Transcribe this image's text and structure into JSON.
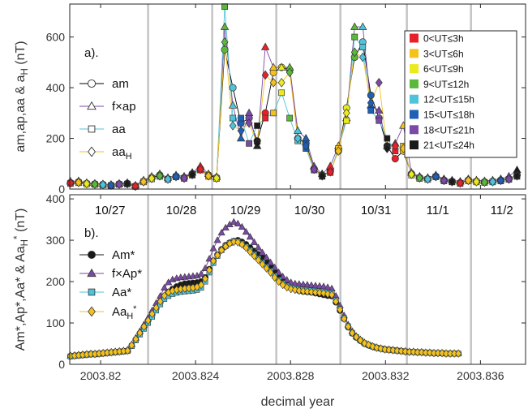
{
  "chart_data": [
    {
      "type": "scatter",
      "panel_label": "a).",
      "ylabel": "am,ap,aa & a_H (nT)",
      "ylabel_parts": {
        "main": "am,ap,aa & a",
        "sub": "H",
        "unit": " (nT)"
      },
      "ylim": [
        0,
        730
      ],
      "yticks": [
        0,
        200,
        400,
        600
      ],
      "ytick_labels": [
        "0",
        "200",
        "400",
        "600"
      ],
      "xlim": [
        2003.8187,
        2003.8379
      ],
      "vlines": [
        2003.822,
        2003.8247,
        2003.8274,
        2003.8301,
        2003.8329,
        2003.8356
      ],
      "legend": [
        "am",
        "f×ap",
        "aa",
        "aa_H"
      ],
      "legend_parts": [
        {
          "main": "am",
          "sub": ""
        },
        {
          "main": "f×ap",
          "sub": ""
        },
        {
          "main": "aa",
          "sub": ""
        },
        {
          "main": "aa",
          "sub": "H"
        }
      ],
      "ut_legend": [
        {
          "label": "0<UT≤3h",
          "color": "#e8202a"
        },
        {
          "label": "3<UT≤6h",
          "color": "#f5c21b"
        },
        {
          "label": "6<UT≤9h",
          "color": "#eaea1c"
        },
        {
          "label": "9<UT≤12h",
          "color": "#5cb83a"
        },
        {
          "label": "12<UT≤15h",
          "color": "#4fc3d9"
        },
        {
          "label": "15<UT≤18h",
          "color": "#1f5fb4"
        },
        {
          "label": "18<UT≤21h",
          "color": "#7a4aa6"
        },
        {
          "label": "21<UT≤24h",
          "color": "#1a1a1a"
        }
      ],
      "x_start": 2003.81873,
      "x_step": 0.000342,
      "series": [
        {
          "name": "am",
          "marker": "circle",
          "line_color": "#000000",
          "values": [
            25,
            28,
            22,
            20,
            18,
            15,
            20,
            22,
            12,
            30,
            45,
            55,
            40,
            50,
            45,
            60,
            80,
            55,
            45,
            550,
            400,
            260,
            280,
            190,
            300,
            460,
            480,
            470,
            200,
            180,
            80,
            55,
            70,
            150,
            320,
            520,
            580,
            370,
            280,
            170,
            120,
            150,
            60,
            45,
            40,
            50,
            35,
            30,
            25,
            35,
            30,
            28,
            30,
            35,
            40,
            55
          ]
        },
        {
          "name": "f×ap",
          "marker": "triangle",
          "line_color": "#7a4aa6",
          "values": [
            30,
            32,
            25,
            22,
            20,
            18,
            22,
            25,
            15,
            35,
            50,
            60,
            45,
            55,
            50,
            65,
            90,
            60,
            48,
            640,
            330,
            200,
            300,
            170,
            560,
            480,
            480,
            480,
            230,
            200,
            90,
            60,
            90,
            170,
            280,
            640,
            640,
            330,
            310,
            170,
            180,
            250,
            65,
            50,
            45,
            55,
            40,
            35,
            30,
            40,
            35,
            32,
            35,
            40,
            50,
            75
          ]
        },
        {
          "name": "aa",
          "marker": "square",
          "line_color": "#4fc3d9",
          "values": [
            22,
            25,
            20,
            18,
            16,
            14,
            18,
            20,
            10,
            28,
            40,
            50,
            38,
            48,
            42,
            55,
            75,
            50,
            42,
            720,
            280,
            280,
            180,
            250,
            280,
            300,
            380,
            280,
            190,
            160,
            75,
            50,
            65,
            160,
            270,
            600,
            560,
            310,
            270,
            200,
            150,
            170,
            55,
            42,
            38,
            48,
            32,
            28,
            22,
            32,
            28,
            26,
            28,
            32,
            38,
            50
          ]
        },
        {
          "name": "aa_H",
          "marker": "diamond",
          "line_color": "#f5c21b",
          "values": [
            24,
            26,
            21,
            19,
            17,
            15,
            19,
            21,
            11,
            29,
            42,
            52,
            39,
            49,
            43,
            57,
            78,
            52,
            43,
            580,
            250,
            230,
            260,
            180,
            450,
            420,
            420,
            460,
            200,
            170,
            78,
            52,
            68,
            150,
            300,
            540,
            520,
            340,
            420,
            160,
            170,
            160,
            58,
            44,
            39,
            49,
            34,
            29,
            24,
            34,
            29,
            27,
            29,
            34,
            39,
            52
          ]
        }
      ]
    },
    {
      "type": "line",
      "panel_label": "b).",
      "ylabel": "Am*,Ap*,Aa* & Aa_H* (nT)",
      "ylabel_parts": {
        "main": "Am*,Ap*,Aa* & Aa",
        "sub": "H",
        "sup": "*",
        "unit": " (nT)"
      },
      "xlabel": "decimal year",
      "ylim": [
        0,
        410
      ],
      "yticks": [
        0,
        100,
        200,
        300,
        400
      ],
      "ytick_labels": [
        "0",
        "100",
        "200",
        "300",
        "400"
      ],
      "xlim": [
        2003.8187,
        2003.8379
      ],
      "xticks": [
        2003.82,
        2003.824,
        2003.828,
        2003.832,
        2003.836
      ],
      "xtick_labels": [
        "2003.82",
        "2003.824",
        "2003.828",
        "2003.832",
        "2003.836"
      ],
      "vlines": [
        2003.822,
        2003.8247,
        2003.8274,
        2003.8301,
        2003.8329,
        2003.8356
      ],
      "day_labels": [
        {
          "label": "10/27",
          "x": 2003.8204
        },
        {
          "label": "10/28",
          "x": 2003.8234
        },
        {
          "label": "10/29",
          "x": 2003.8261
        },
        {
          "label": "10/30",
          "x": 2003.8288
        },
        {
          "label": "10/31",
          "x": 2003.8316
        },
        {
          "label": "11/1",
          "x": 2003.8342
        },
        {
          "label": "11/2",
          "x": 2003.8369
        }
      ],
      "legend": [
        "Am*",
        "f×Ap*",
        "Aa*",
        "Aa_H*"
      ],
      "legend_parts": [
        {
          "main": "Am*",
          "sub": "",
          "sup": ""
        },
        {
          "main": "f×Ap*",
          "sub": "",
          "sup": ""
        },
        {
          "main": "Aa*",
          "sub": "",
          "sup": ""
        },
        {
          "main": "Aa",
          "sub": "H",
          "sup": "*"
        }
      ],
      "x_start": 2003.81873,
      "x_step": 0.000172,
      "series": [
        {
          "name": "Am*",
          "marker": "circle",
          "color": "#1a1a1a",
          "values": [
            20,
            21,
            22,
            23,
            24,
            25,
            25,
            26,
            27,
            28,
            29,
            30,
            31,
            32,
            33,
            45,
            60,
            75,
            90,
            105,
            120,
            135,
            150,
            165,
            175,
            182,
            188,
            192,
            195,
            196,
            197,
            198,
            200,
            210,
            230,
            250,
            265,
            278,
            288,
            294,
            298,
            300,
            296,
            290,
            282,
            274,
            266,
            258,
            248,
            238,
            226,
            214,
            204,
            195,
            188,
            182,
            178,
            176,
            175,
            174,
            172,
            170,
            168,
            166,
            165,
            150,
            130,
            110,
            90,
            75,
            65,
            57,
            50,
            46,
            43,
            40,
            38,
            36,
            35,
            34,
            33,
            32,
            31,
            30,
            30,
            29,
            29,
            28,
            28,
            27,
            27,
            27,
            26,
            26,
            26,
            26
          ]
        },
        {
          "name": "f×Ap*",
          "marker": "triangle",
          "color": "#7a4aa6",
          "values": [
            21,
            22,
            23,
            24,
            25,
            26,
            26,
            27,
            28,
            29,
            30,
            31,
            32,
            33,
            35,
            48,
            64,
            80,
            96,
            112,
            130,
            148,
            165,
            185,
            198,
            205,
            208,
            210,
            211,
            212,
            213,
            214,
            218,
            232,
            255,
            280,
            300,
            318,
            330,
            338,
            344,
            340,
            332,
            320,
            308,
            295,
            282,
            270,
            258,
            246,
            234,
            222,
            212,
            204,
            198,
            195,
            194,
            193,
            192,
            191,
            190,
            189,
            188,
            186,
            183,
            165,
            142,
            118,
            96,
            80,
            68,
            60,
            53,
            48,
            44,
            41,
            39,
            37,
            36,
            35,
            34,
            33,
            32,
            31,
            31,
            30,
            30,
            29,
            29,
            28,
            28,
            28,
            27,
            27,
            27,
            27
          ]
        },
        {
          "name": "Aa*",
          "marker": "square",
          "color": "#4fc3d9",
          "values": [
            19,
            20,
            21,
            22,
            23,
            24,
            24,
            25,
            26,
            27,
            28,
            29,
            30,
            31,
            32,
            44,
            58,
            72,
            86,
            100,
            115,
            130,
            145,
            158,
            165,
            170,
            173,
            175,
            176,
            177,
            178,
            180,
            185,
            200,
            222,
            245,
            262,
            276,
            286,
            293,
            298,
            297,
            292,
            285,
            276,
            266,
            256,
            246,
            236,
            226,
            214,
            204,
            196,
            190,
            186,
            184,
            182,
            181,
            180,
            179,
            178,
            177,
            176,
            174,
            172,
            155,
            134,
            112,
            92,
            76,
            66,
            58,
            51,
            47,
            43,
            40,
            38,
            36,
            35,
            34,
            33,
            32,
            31,
            30,
            30,
            29,
            29,
            28,
            28,
            27,
            27,
            27,
            26,
            26,
            26,
            26
          ]
        },
        {
          "name": "Aa_H*",
          "marker": "diamond",
          "color": "#f5c21b",
          "values": [
            20,
            21,
            22,
            23,
            24,
            25,
            25,
            26,
            27,
            28,
            29,
            30,
            31,
            32,
            33,
            46,
            61,
            76,
            91,
            106,
            122,
            137,
            152,
            166,
            174,
            178,
            180,
            182,
            183,
            184,
            185,
            187,
            192,
            207,
            228,
            250,
            264,
            276,
            285,
            292,
            296,
            295,
            290,
            282,
            272,
            262,
            252,
            242,
            232,
            222,
            210,
            200,
            192,
            186,
            182,
            180,
            178,
            177,
            176,
            175,
            174,
            173,
            172,
            170,
            168,
            152,
            132,
            110,
            91,
            76,
            66,
            58,
            51,
            47,
            43,
            40,
            38,
            36,
            35,
            34,
            33,
            32,
            31,
            30,
            30,
            29,
            29,
            28,
            28,
            27,
            27,
            27,
            26,
            26,
            26,
            26
          ]
        }
      ]
    }
  ]
}
